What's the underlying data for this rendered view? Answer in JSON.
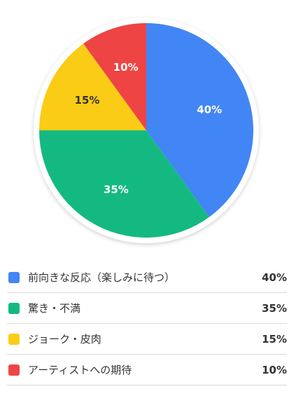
{
  "chart_data": {
    "type": "pie",
    "categories": [
      "前向きな反応（楽しみに待つ）",
      "驚き・不満",
      "ジョーク・皮肉",
      "アーティストへの期待"
    ],
    "values": [
      40,
      35,
      15,
      10
    ],
    "value_labels": [
      "40%",
      "35%",
      "15%",
      "10%"
    ],
    "colors": [
      "#4285f4",
      "#14b982",
      "#facc15",
      "#ef4444"
    ],
    "label_colors": [
      "#ffffff",
      "#ffffff",
      "#333333",
      "#ffffff"
    ],
    "start_angle": "12 o'clock",
    "direction": "clockwise",
    "legend_position": "bottom"
  }
}
